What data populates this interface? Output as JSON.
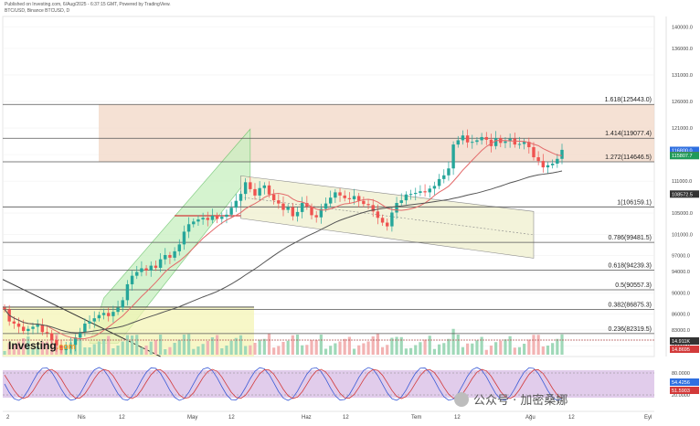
{
  "header": {
    "line1": "Published on Investing.com, 6/Aug/2025 - 6:37:15 GMT, Powered by TradingView.",
    "line2": "BTC/USD, Binance BTCUSD, D"
  },
  "branding": {
    "logo": "Investing",
    "logo_suffix": ".com",
    "watermark": "公众号 · 加密桑娜"
  },
  "colors": {
    "up": "#26a69a",
    "down": "#ef5350",
    "ma_fast": "#e36a6a",
    "ma_slow": "#555555",
    "fib_band": "#f3d9c9",
    "channel": "#f2f2d4",
    "wedge": "#c8f0c0",
    "range": "#f4f3b0",
    "stoch_bg": "#dcc3e8"
  },
  "chart_data": {
    "type": "candlestick",
    "symbol": "BTC/USD",
    "interval": "D",
    "ylim": [
      78000,
      142000
    ],
    "y_ticks": [
      140000,
      136000,
      131000,
      126000,
      121000,
      116000,
      111000,
      105000,
      101000,
      97000,
      94000,
      90000,
      86000,
      83000,
      80000
    ],
    "y_tick_labels": [
      "140000.0",
      "136000.0",
      "131000.0",
      "126000.0",
      "121000.0",
      "116000.0",
      "111000.0",
      "105000.0",
      "101000.0",
      "97000.0",
      "94000.0",
      "90000.0",
      "86000.0",
      "83000.0",
      "80000.0"
    ],
    "x_labels": [
      "2",
      "Nis",
      "12",
      "May",
      "12",
      "Haz",
      "12",
      "Tem",
      "12",
      "Ağu",
      "12",
      "Eyl"
    ],
    "fib_levels": [
      {
        "label": "1.618(125443.0)",
        "value": 125443.0
      },
      {
        "label": "1.414(119077.4)",
        "value": 119077.4
      },
      {
        "label": "1.272(114646.5)",
        "value": 114646.5
      },
      {
        "label": "1(106159.1)",
        "value": 106159.1
      },
      {
        "label": "0.786(99481.5)",
        "value": 99481.5
      },
      {
        "label": "0.618(94239.3)",
        "value": 94239.3
      },
      {
        "label": "0.5(90557.3)",
        "value": 90557.3
      },
      {
        "label": "0.382(86875.3)",
        "value": 86875.3
      },
      {
        "label": "0.236(82319.5)",
        "value": 82319.5
      }
    ],
    "price_badges": [
      {
        "label": "116800.0",
        "value": 116800.0,
        "color": "#2f6fe0"
      },
      {
        "label": "115834.2",
        "value": 115834.2,
        "color": "#d23a3a"
      },
      {
        "label": "115807.7",
        "value": 115807.7,
        "color": "#1f9a5a"
      },
      {
        "label": "108572.5",
        "value": 108572.5,
        "color": "#333333"
      }
    ],
    "indicator_badges": [
      {
        "label": "14.911K",
        "color": "#333333"
      },
      {
        "label": "14.8695",
        "color": "#d23a3a"
      }
    ],
    "stoch_badges": [
      {
        "label": "54.4256",
        "color": "#2f6fe0"
      },
      {
        "label": "51.5903",
        "color": "#d23a3a"
      }
    ],
    "stoch_ticks": [
      "80.0000",
      "20.0000"
    ],
    "closes": [
      86900,
      84600,
      84200,
      83600,
      82800,
      83200,
      83600,
      84000,
      82600,
      82400,
      81100,
      80100,
      79200,
      79600,
      80200,
      81600,
      82600,
      84200,
      84600,
      85200,
      85800,
      86200,
      85600,
      86400,
      87200,
      88600,
      91600,
      93200,
      93900,
      94600,
      94200,
      95100,
      94700,
      96300,
      97100,
      96600,
      97800,
      99100,
      101500,
      102900,
      103400,
      103800,
      104100,
      103700,
      104500,
      103900,
      104300,
      104700,
      106000,
      107300,
      108600,
      110800,
      109500,
      108300,
      109700,
      110200,
      108500,
      107400,
      106800,
      105600,
      106100,
      104400,
      105200,
      106900,
      106200,
      104600,
      104200,
      105800,
      106800,
      107900,
      108900,
      108300,
      107800,
      107600,
      108200,
      107300,
      106700,
      106500,
      105300,
      104100,
      103200,
      102500,
      105100,
      106900,
      107400,
      108500,
      108600,
      108800,
      109100,
      108900,
      109600,
      110100,
      111400,
      112100,
      113400,
      117900,
      118700,
      119600,
      118300,
      118400,
      118700,
      119300,
      118800,
      117600,
      119100,
      118200,
      118500,
      119000,
      117900,
      118000,
      118400,
      117400,
      115500,
      114800,
      113600,
      114000,
      114300,
      115200,
      116900
    ]
  }
}
